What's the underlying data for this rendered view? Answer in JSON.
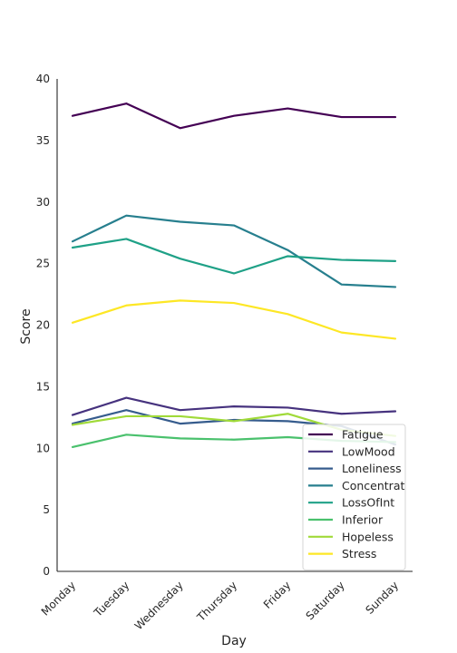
{
  "chart_data": {
    "type": "line",
    "title": "",
    "xlabel": "Day",
    "ylabel": "Score",
    "categories": [
      "Monday",
      "Tuesday",
      "Wednesday",
      "Thursday",
      "Friday",
      "Saturday",
      "Sunday"
    ],
    "ylim": [
      0,
      40
    ],
    "yticks": [
      "0",
      "5",
      "10",
      "15",
      "20",
      "25",
      "30",
      "35",
      "40"
    ],
    "grid": false,
    "legend_position": "bottom-right",
    "series": [
      {
        "name": "Fatigue",
        "color": "#440154",
        "values": [
          37.0,
          38.0,
          36.0,
          37.0,
          37.6,
          36.9,
          36.9
        ]
      },
      {
        "name": "LowMood",
        "color": "#46327e",
        "values": [
          12.7,
          14.1,
          13.1,
          13.4,
          13.3,
          12.8,
          13.0
        ]
      },
      {
        "name": "Loneliness",
        "color": "#365c8d",
        "values": [
          12.0,
          13.1,
          12.0,
          12.3,
          12.2,
          11.8,
          10.3
        ]
      },
      {
        "name": "Concentrat",
        "color": "#277f8e",
        "values": [
          26.8,
          28.9,
          28.4,
          28.1,
          26.1,
          23.3,
          23.1
        ]
      },
      {
        "name": "LossOfInt",
        "color": "#1fa187",
        "values": [
          26.3,
          27.0,
          25.4,
          24.2,
          25.6,
          25.3,
          25.2
        ]
      },
      {
        "name": "Inferior",
        "color": "#4ac16d",
        "values": [
          10.1,
          11.1,
          10.8,
          10.7,
          10.9,
          10.6,
          10.5
        ]
      },
      {
        "name": "Hopeless",
        "color": "#a0da39",
        "values": [
          11.9,
          12.6,
          12.6,
          12.2,
          12.8,
          11.5,
          11.0
        ]
      },
      {
        "name": "Stress",
        "color": "#fde725",
        "values": [
          20.2,
          21.6,
          22.0,
          21.8,
          20.9,
          19.4,
          18.9
        ]
      }
    ]
  }
}
